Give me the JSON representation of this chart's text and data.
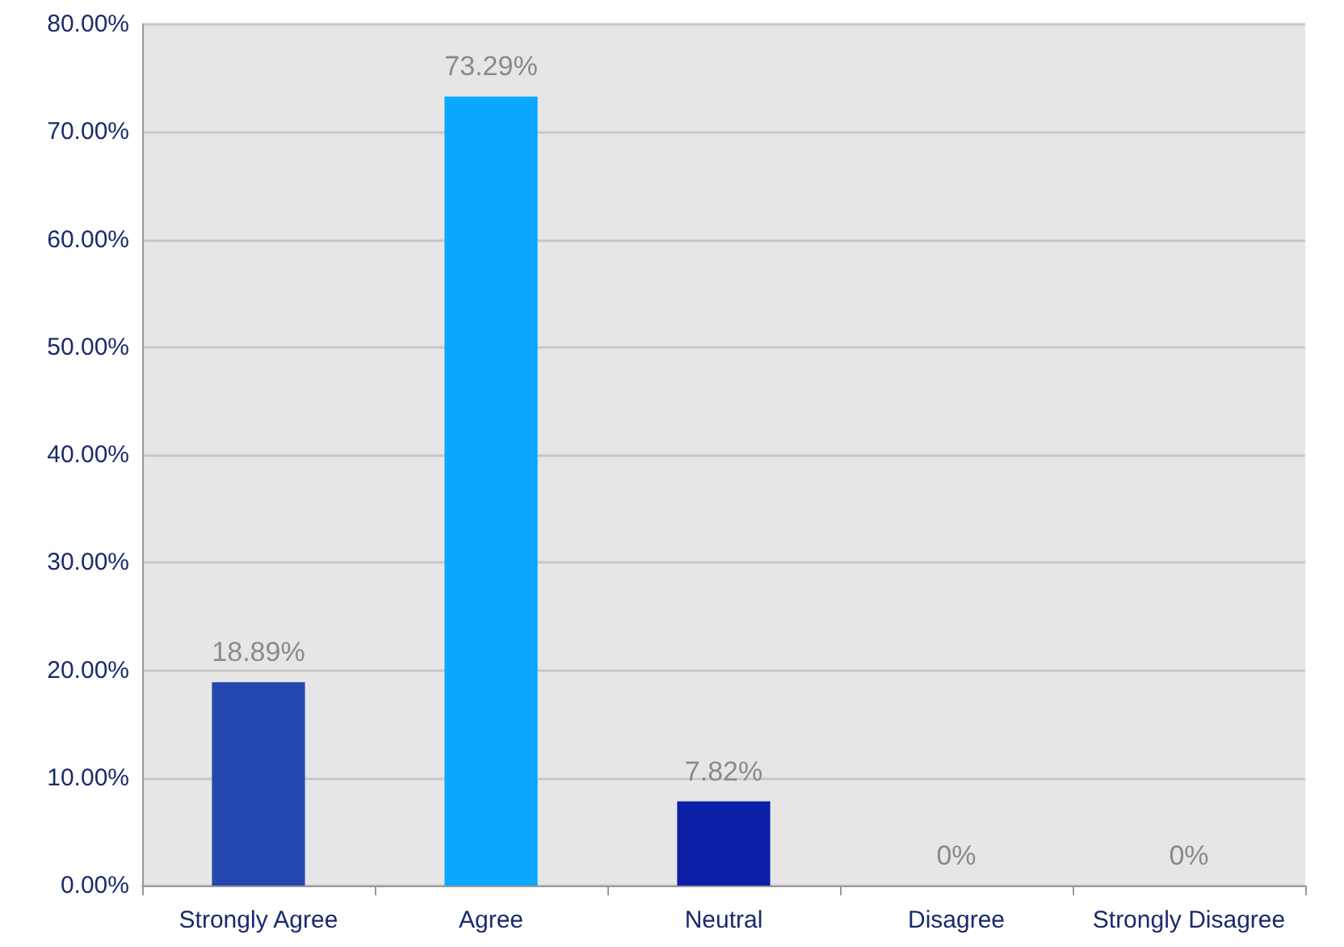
{
  "chart_data": {
    "type": "bar",
    "categories": [
      "Strongly Agree",
      "Agree",
      "Neutral",
      "Disagree",
      "Strongly Disagree"
    ],
    "values": [
      18.89,
      73.29,
      7.82,
      0,
      0
    ],
    "value_labels": [
      "18.89%",
      "73.29%",
      "7.82%",
      "0%",
      "0%"
    ],
    "colors": [
      "#2448b0",
      "#0aa8ff",
      "#0a1ea6",
      "#1a3ab0",
      "#1a3ab0"
    ],
    "ylim": [
      0,
      80
    ],
    "yticks": [
      {
        "value": 0,
        "label": "0.00%"
      },
      {
        "value": 10,
        "label": "10.00%"
      },
      {
        "value": 20,
        "label": "20.00%"
      },
      {
        "value": 30,
        "label": "30.00%"
      },
      {
        "value": 40,
        "label": "40.00%"
      },
      {
        "value": 50,
        "label": "50.00%"
      },
      {
        "value": 60,
        "label": "60.00%"
      },
      {
        "value": 70,
        "label": "70.00%"
      },
      {
        "value": 80,
        "label": "80.00%"
      }
    ],
    "grid": "y"
  }
}
